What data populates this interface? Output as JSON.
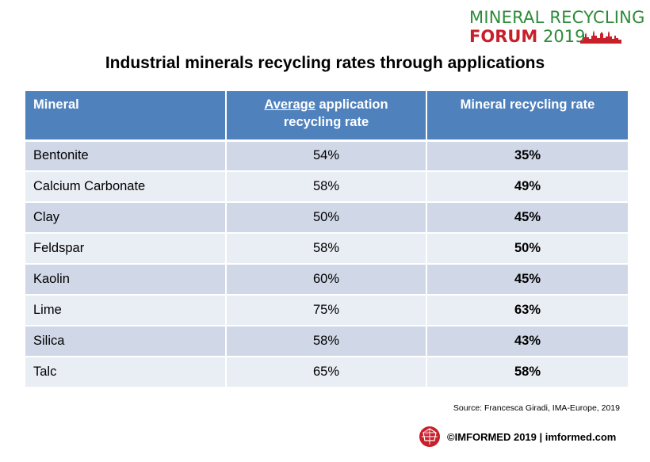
{
  "logo": {
    "line1": "MINERAL RECYCLING",
    "line2_bold": "FORUM",
    "line2_year": "2019",
    "icon": "city-skyline-icon",
    "colors": {
      "green": "#2e8b3a",
      "red": "#c8202b"
    }
  },
  "title": "Industrial minerals recycling rates through applications",
  "table": {
    "headers": {
      "mineral": "Mineral",
      "avg_underlined": "Average",
      "avg_rest": " application recycling rate",
      "rate": "Mineral recycling rate"
    },
    "rows": [
      {
        "mineral": "Bentonite",
        "avg": "54%",
        "rate": "35%"
      },
      {
        "mineral": "Calcium Carbonate",
        "avg": "58%",
        "rate": "49%"
      },
      {
        "mineral": "Clay",
        "avg": "50%",
        "rate": "45%"
      },
      {
        "mineral": "Feldspar",
        "avg": "58%",
        "rate": "50%"
      },
      {
        "mineral": "Kaolin",
        "avg": "60%",
        "rate": "45%"
      },
      {
        "mineral": "Lime",
        "avg": "75%",
        "rate": "63%"
      },
      {
        "mineral": "Silica",
        "avg": "58%",
        "rate": "43%"
      },
      {
        "mineral": "Talc",
        "avg": "65%",
        "rate": "58%"
      }
    ],
    "colors": {
      "header": "#4f81bd",
      "row_odd": "#d0d8e8",
      "row_even": "#e9edf4"
    }
  },
  "source": "Source: Francesca Giradi, IMA-Europe,  2019",
  "footer": {
    "text": "©IMFORMED 2019  | imformed.com",
    "icon": "imformed-red-sphere-icon"
  }
}
